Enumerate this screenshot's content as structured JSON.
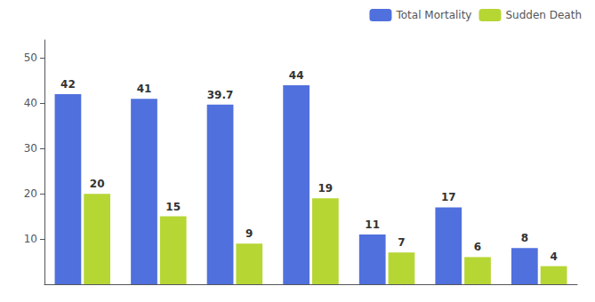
{
  "chart_data": {
    "type": "bar",
    "categories": [
      null,
      null,
      null,
      null,
      null,
      null,
      null
    ],
    "series": [
      {
        "name": "Total Mortality",
        "values": [
          42,
          41,
          39.7,
          44,
          11,
          17,
          8
        ]
      },
      {
        "name": "Sudden Death",
        "values": [
          20,
          15,
          9,
          19,
          7,
          6,
          4
        ]
      }
    ],
    "ylim": [
      0,
      54
    ],
    "yticks": [
      10,
      20,
      30,
      40,
      50
    ],
    "grid": false,
    "legend": "upper right",
    "data_labels": true,
    "tick_labels": "y"
  }
}
